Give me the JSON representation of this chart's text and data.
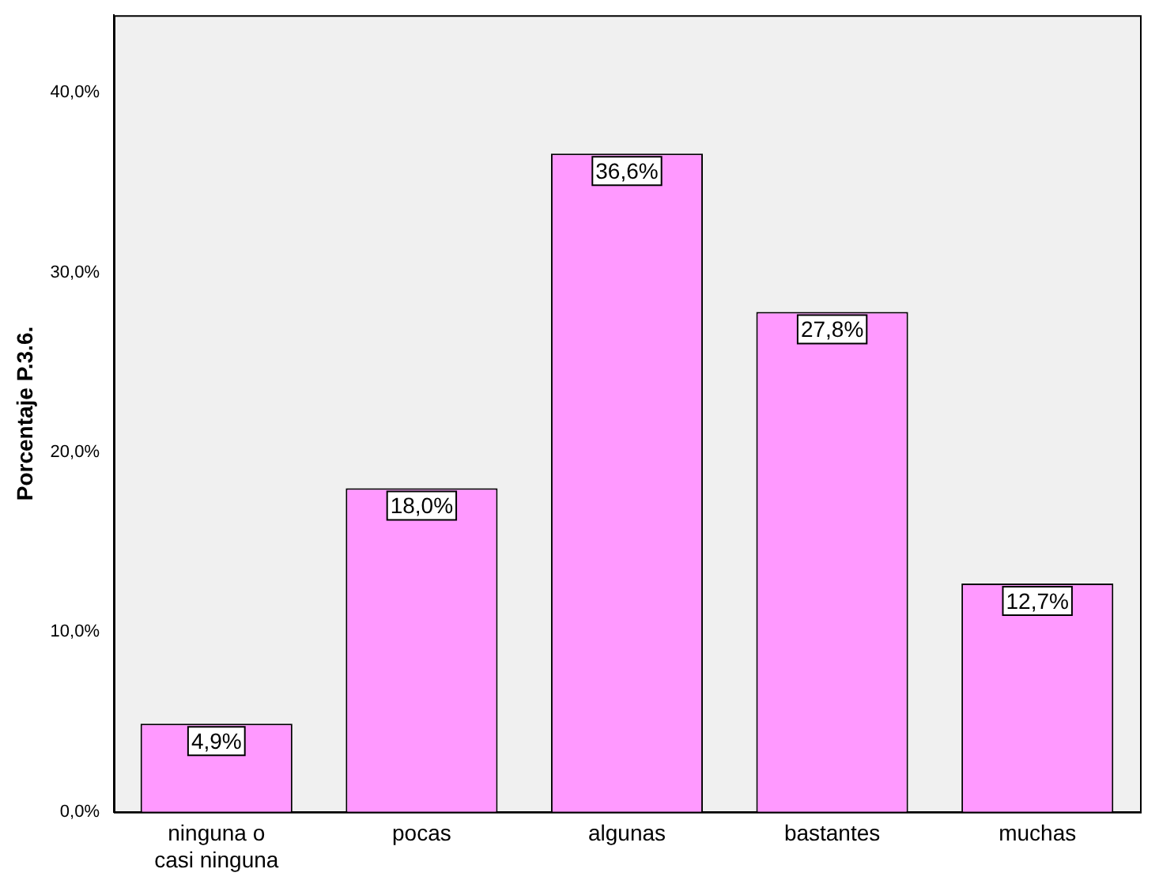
{
  "chart_data": {
    "type": "bar",
    "ylabel": "Porcentaje P.3.6.",
    "categories": [
      "ninguna o casi ninguna",
      "pocas",
      "algunas",
      "bastantes",
      "muchas"
    ],
    "values": [
      4.9,
      18.0,
      36.6,
      27.8,
      12.7
    ],
    "value_labels": [
      "4,9%",
      "18,0%",
      "36,6%",
      "27,8%",
      "12,7%"
    ],
    "color": "#ff99ff",
    "ylim": [
      0,
      44.3
    ],
    "yticks": [
      {
        "value": 0,
        "label": "0,0%"
      },
      {
        "value": 10,
        "label": "10,0%"
      },
      {
        "value": 20,
        "label": "20,0%"
      },
      {
        "value": 30,
        "label": "30,0%"
      },
      {
        "value": 40,
        "label": "40,0%"
      }
    ],
    "grid": false,
    "legend": false
  }
}
